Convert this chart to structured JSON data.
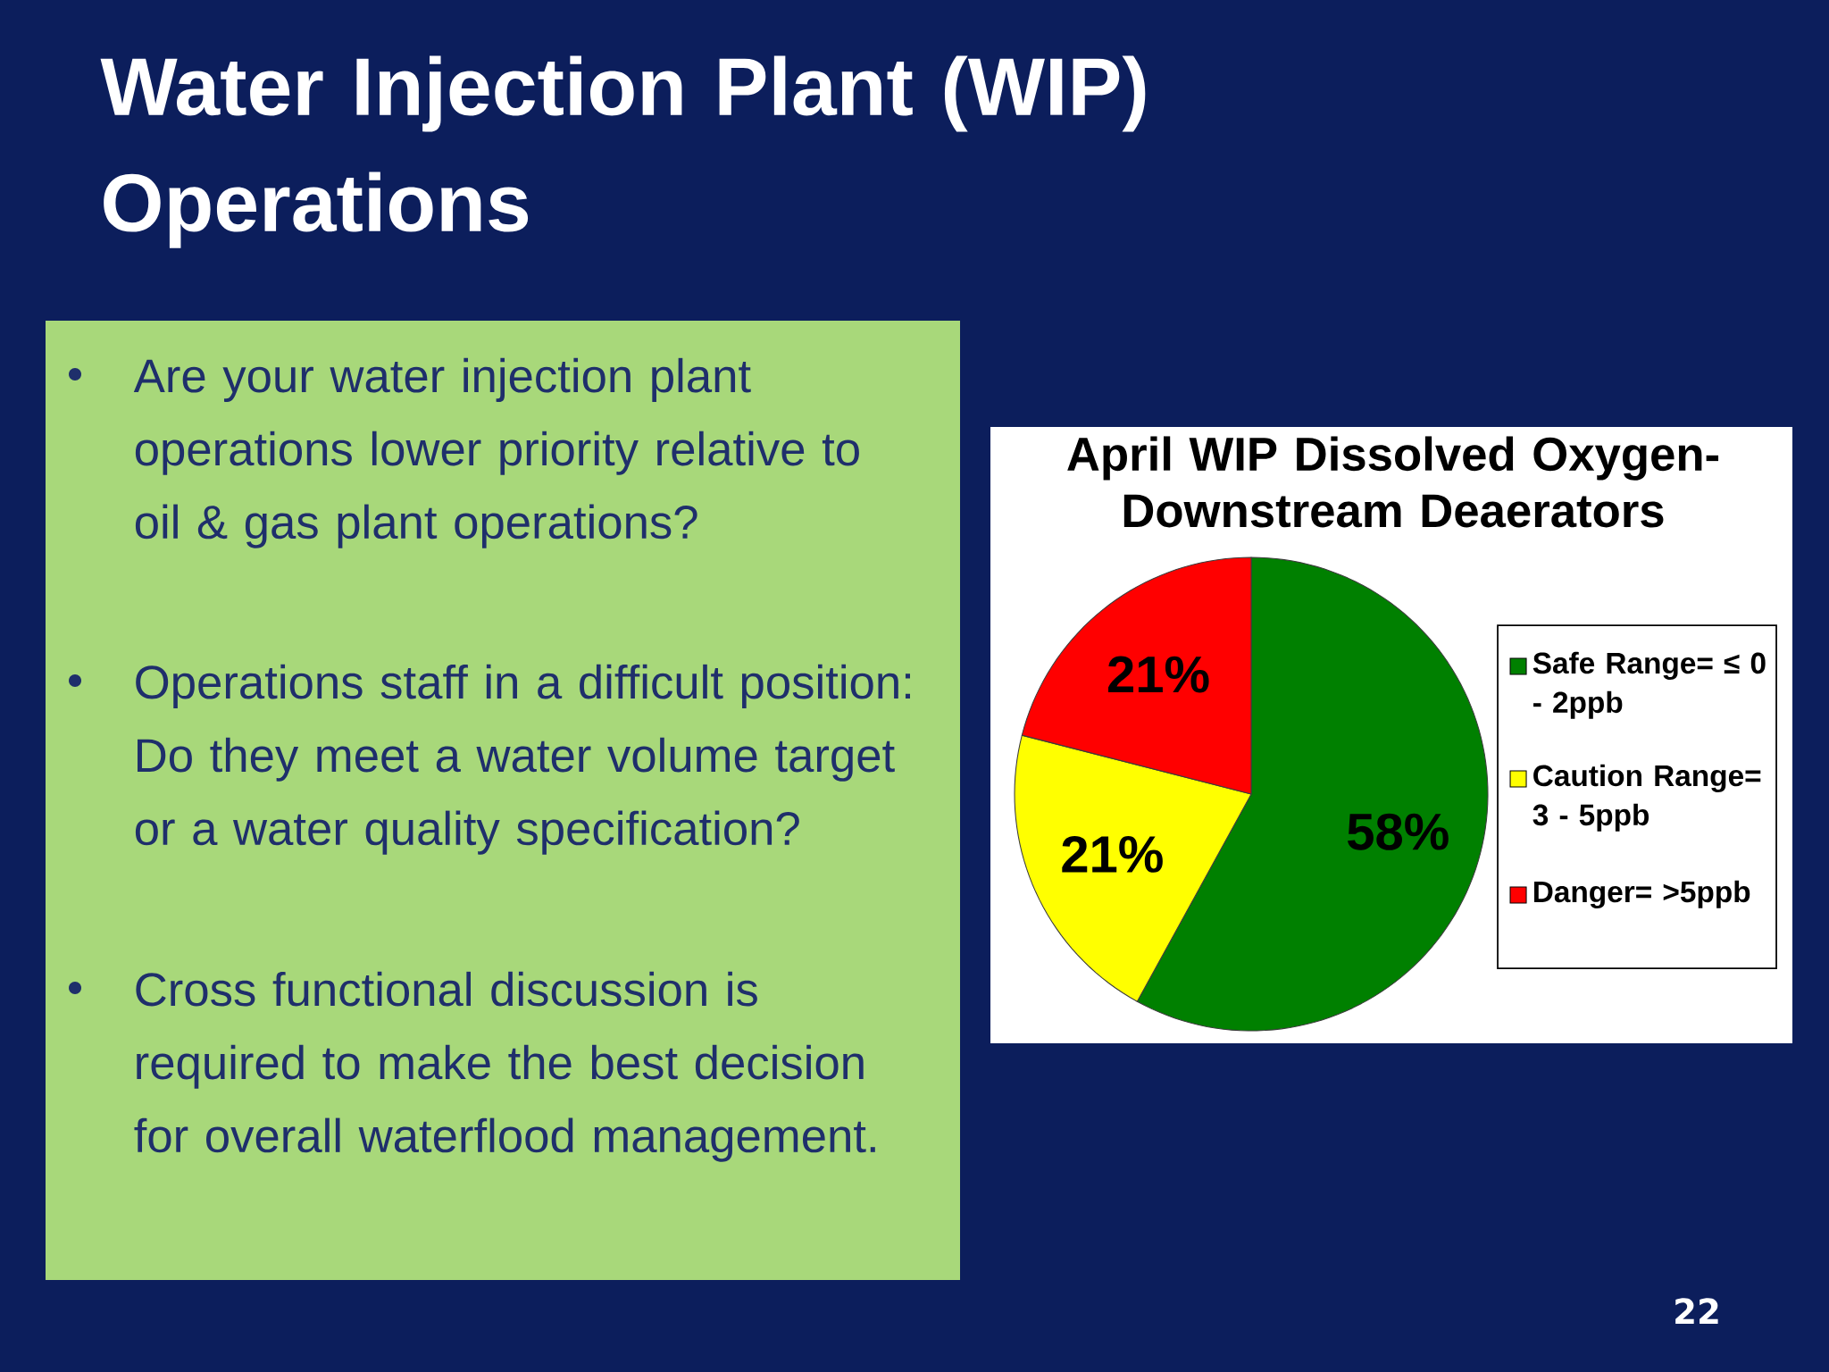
{
  "chart_data": {
    "type": "pie",
    "title": "Water Injection Plant (WIP) Operations",
    "subtitle": "April WIP Dissolved Oxygen- Downstream Deaerators",
    "categories": [
      "Safe Range= ≤ 0 - 2ppb",
      "Caution Range= 3 - 5ppb",
      "Danger= >5ppb"
    ],
    "values": [
      58,
      21,
      21
    ],
    "colors": [
      "#008000",
      "#ffff00",
      "#ff0000"
    ],
    "value_labels": [
      "58%",
      "21%",
      "21%"
    ],
    "legend": "right",
    "annotations": [
      "Are your water  injection plant operations lower priority relative to oil & gas plant operations?",
      "Operations staff in a difficult position: Do they meet a water volume target or a water quality specification?",
      "Cross functional discussion is required to make the best decision for overall waterflood management.",
      "22"
    ]
  }
}
